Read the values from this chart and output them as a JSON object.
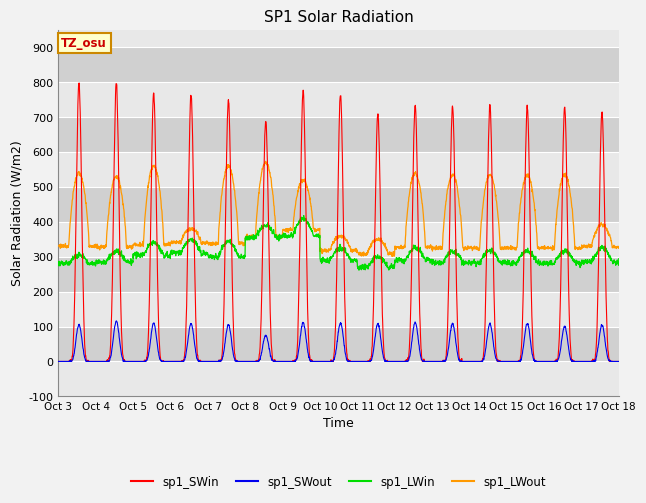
{
  "title": "SP1 Solar Radiation",
  "xlabel": "Time",
  "ylabel": "Solar Radiation (W/m2)",
  "ylim": [
    -100,
    950
  ],
  "yticks": [
    -100,
    0,
    100,
    200,
    300,
    400,
    500,
    600,
    700,
    800,
    900
  ],
  "x_tick_labels": [
    "Oct 3",
    "Oct 4",
    "Oct 5",
    "Oct 6",
    "Oct 7",
    "Oct 8",
    "Oct 9",
    "Oct 10",
    "Oct 11",
    "Oct 12",
    "Oct 13",
    "Oct 14",
    "Oct 15",
    "Oct 16",
    "Oct 17",
    "Oct 18"
  ],
  "annotation_text": "TZ_osu",
  "annotation_color": "#cc0000",
  "annotation_bg": "#ffffcc",
  "annotation_border": "#cc8800",
  "legend_entries": [
    "sp1_SWin",
    "sp1_SWout",
    "sp1_LWin",
    "sp1_LWout"
  ],
  "line_colors": [
    "#ff0000",
    "#0000ee",
    "#00dd00",
    "#ff9900"
  ],
  "stripe_light": "#e8e8e8",
  "stripe_dark": "#d0d0d0",
  "n_days": 15,
  "sw_in_peaks": [
    800,
    800,
    770,
    765,
    750,
    690,
    775,
    765,
    710,
    735,
    730,
    735,
    730,
    730,
    715
  ],
  "sw_out_peaks": [
    105,
    115,
    110,
    108,
    105,
    75,
    112,
    110,
    108,
    112,
    108,
    108,
    108,
    100,
    105
  ],
  "lw_in_base": [
    280,
    285,
    305,
    310,
    300,
    355,
    360,
    290,
    270,
    290,
    282,
    282,
    282,
    282,
    285
  ],
  "lw_in_day_rise": [
    25,
    30,
    35,
    40,
    45,
    35,
    50,
    35,
    30,
    35,
    35,
    35,
    35,
    35,
    40
  ],
  "lw_out_base": [
    330,
    328,
    335,
    340,
    338,
    358,
    378,
    318,
    308,
    328,
    325,
    325,
    325,
    325,
    330
  ],
  "lw_out_day_peak": [
    540,
    530,
    560,
    380,
    560,
    570,
    520,
    360,
    350,
    540,
    535,
    535,
    535,
    535,
    390
  ],
  "day_start": 0.28,
  "day_end": 0.82
}
